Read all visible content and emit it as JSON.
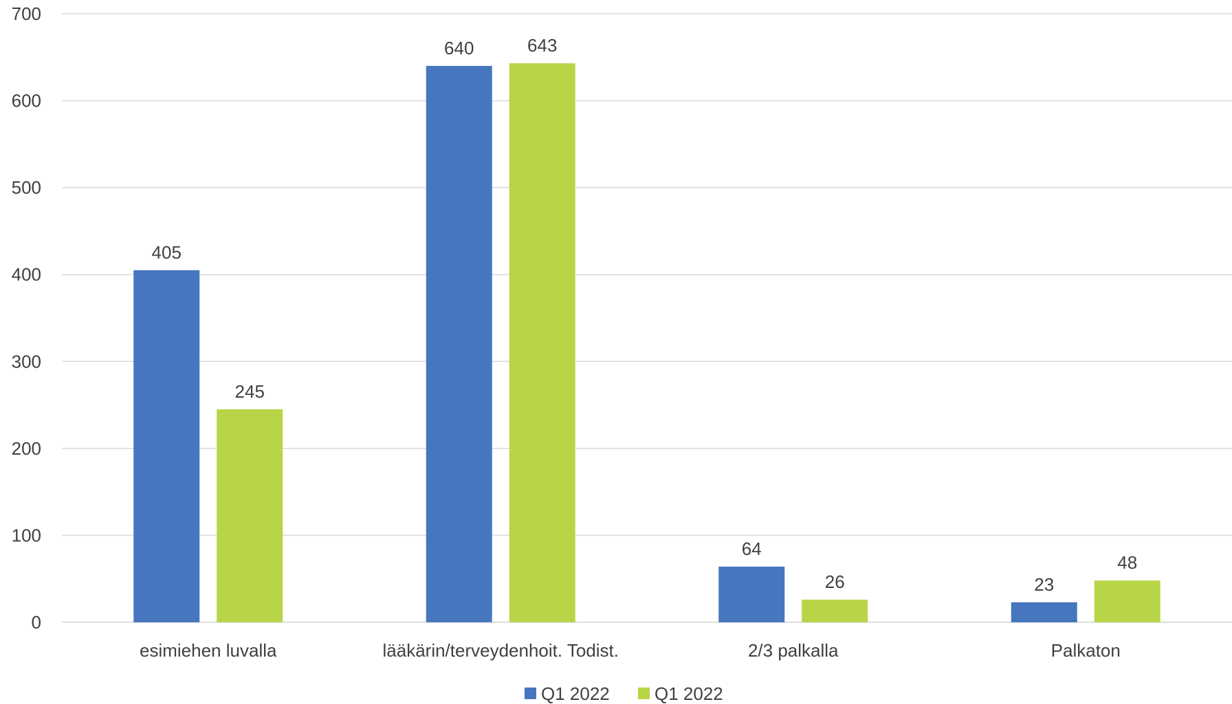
{
  "chart_data": {
    "type": "bar",
    "title": "",
    "xlabel": "",
    "ylabel": "",
    "categories": [
      "esimiehen luvalla",
      "lääkärin/terveydenhoit. Todist.",
      "2/3 palkalla",
      "Palkaton"
    ],
    "series": [
      {
        "name": "Q1 2022",
        "color": "#4677BE",
        "values": [
          405,
          640,
          64,
          23
        ]
      },
      {
        "name": "Q1 2022",
        "color": "#B8D547",
        "values": [
          245,
          643,
          26,
          48
        ]
      }
    ],
    "ylim": [
      0,
      700
    ],
    "yticks": [
      0,
      100,
      200,
      300,
      400,
      500,
      600,
      700
    ],
    "grid": true,
    "gridline_color": "#D9D9D9",
    "legend_position": "bottom",
    "data_labels": true
  }
}
